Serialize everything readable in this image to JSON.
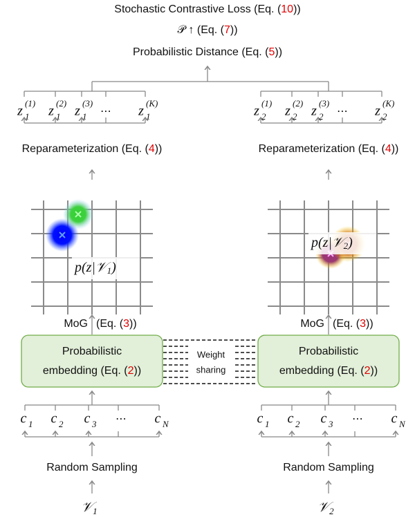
{
  "top": {
    "loss": {
      "prefix": "Stochastic Contrastive Loss (Eq. (",
      "ref": "10",
      "suffix": "))"
    },
    "objective": {
      "prefix": "𝒫 ↑ (Eq. (",
      "ref": "7",
      "suffix": "))"
    },
    "distance": {
      "prefix": "Probabilistic Distance (Eq. (",
      "ref": "5",
      "suffix": "))"
    }
  },
  "branches": [
    {
      "samples": [
        {
          "base": "z",
          "sub": "1",
          "sup": "(1)"
        },
        {
          "base": "z",
          "sub": "1",
          "sup": "(2)"
        },
        {
          "base": "z",
          "sub": "1",
          "sup": "(3)"
        },
        "⋯",
        {
          "base": "z",
          "sub": "1",
          "sup": "(K)"
        }
      ],
      "reparam": {
        "prefix": "Reparameterization (Eq. (",
        "ref": "4",
        "suffix": "))"
      },
      "density": {
        "prefix": "p(z|",
        "var": "𝒱",
        "sub": "1",
        "suffix": ")"
      },
      "mog": {
        "label": "MoG",
        "prefix": "(Eq. (",
        "ref": "3",
        "suffix": "))"
      },
      "embedding": {
        "line1": "Probabilistic",
        "prefix": "embedding (Eq. (",
        "ref": "2",
        "suffix": "))"
      },
      "inputs": [
        {
          "base": "c",
          "sub": "1"
        },
        {
          "base": "c",
          "sub": "2"
        },
        {
          "base": "c",
          "sub": "3"
        },
        "⋯",
        {
          "base": "c",
          "sub": "N"
        }
      ],
      "sampling": "Random Sampling",
      "video": {
        "base": "𝒱",
        "sub": "1"
      }
    },
    {
      "samples": [
        {
          "base": "z",
          "sub": "2",
          "sup": "(1)"
        },
        {
          "base": "z",
          "sub": "2",
          "sup": "(2)"
        },
        {
          "base": "z",
          "sub": "2",
          "sup": "(3)"
        },
        "⋯",
        {
          "base": "z",
          "sub": "2",
          "sup": "(K)"
        }
      ],
      "reparam": {
        "prefix": "Reparameterization (Eq. (",
        "ref": "4",
        "suffix": "))"
      },
      "density": {
        "prefix": "p(z|",
        "var": "𝒱",
        "sub": "2",
        "suffix": ")"
      },
      "mog": {
        "label": "MoG",
        "prefix": "(Eq. (",
        "ref": "3",
        "suffix": "))"
      },
      "embedding": {
        "line1": "Probabilistic",
        "prefix": "embedding (Eq. (",
        "ref": "2",
        "suffix": "))"
      },
      "inputs": [
        {
          "base": "c",
          "sub": "1"
        },
        {
          "base": "c",
          "sub": "2"
        },
        {
          "base": "c",
          "sub": "3"
        },
        "⋯",
        {
          "base": "c",
          "sub": "N"
        }
      ],
      "sampling": "Random Sampling",
      "video": {
        "base": "𝒱",
        "sub": "2"
      }
    }
  ],
  "weight_sharing": [
    "Weight",
    "sharing"
  ]
}
